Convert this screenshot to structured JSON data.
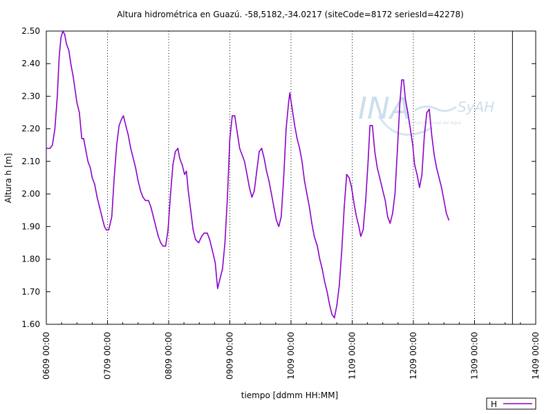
{
  "chart_data": {
    "type": "line",
    "title": "Altura hidrométrica en Guazú. -58,5182,-34.0217  (siteCode=8172 seriesId=42278)",
    "xlabel": "tiempo [ddmm HH:MM]",
    "ylabel": "Altura h [m]",
    "ylim": [
      1.6,
      2.5
    ],
    "yticks": [
      "1.60",
      "1.70",
      "1.80",
      "1.90",
      "2.00",
      "2.10",
      "2.20",
      "2.30",
      "2.40",
      "2.50"
    ],
    "x_unit": "day",
    "xlim": [
      6,
      14
    ],
    "xticks": [
      {
        "x": 6,
        "label": "0609 00:00"
      },
      {
        "x": 7,
        "label": "0709 00:00"
      },
      {
        "x": 8,
        "label": "0809 00:00"
      },
      {
        "x": 9,
        "label": "0909 00:00"
      },
      {
        "x": 10,
        "label": "1009 00:00"
      },
      {
        "x": 11,
        "label": "1109 00:00"
      },
      {
        "x": 12,
        "label": "1209 00:00"
      },
      {
        "x": 13,
        "label": "1309 00:00"
      },
      {
        "x": 14,
        "label": "1409 00:00"
      }
    ],
    "vertical_marker_x": 13.62,
    "legend_position": "bottom-right",
    "series": [
      {
        "name": "H",
        "color": "#8b00c8",
        "points": [
          [
            6.0,
            2.14
          ],
          [
            6.06,
            2.14
          ],
          [
            6.1,
            2.15
          ],
          [
            6.14,
            2.2
          ],
          [
            6.18,
            2.3
          ],
          [
            6.21,
            2.42
          ],
          [
            6.24,
            2.48
          ],
          [
            6.27,
            2.5
          ],
          [
            6.3,
            2.49
          ],
          [
            6.33,
            2.46
          ],
          [
            6.37,
            2.44
          ],
          [
            6.4,
            2.4
          ],
          [
            6.44,
            2.36
          ],
          [
            6.47,
            2.32
          ],
          [
            6.5,
            2.28
          ],
          [
            6.54,
            2.25
          ],
          [
            6.58,
            2.17
          ],
          [
            6.61,
            2.17
          ],
          [
            6.65,
            2.13
          ],
          [
            6.68,
            2.1
          ],
          [
            6.72,
            2.08
          ],
          [
            6.75,
            2.05
          ],
          [
            6.79,
            2.03
          ],
          [
            6.83,
            1.99
          ],
          [
            6.87,
            1.96
          ],
          [
            6.91,
            1.93
          ],
          [
            6.95,
            1.9
          ],
          [
            6.98,
            1.89
          ],
          [
            7.02,
            1.89
          ],
          [
            7.07,
            1.93
          ],
          [
            7.11,
            2.05
          ],
          [
            7.15,
            2.15
          ],
          [
            7.19,
            2.21
          ],
          [
            7.23,
            2.23
          ],
          [
            7.26,
            2.24
          ],
          [
            7.3,
            2.21
          ],
          [
            7.34,
            2.18
          ],
          [
            7.38,
            2.14
          ],
          [
            7.42,
            2.11
          ],
          [
            7.46,
            2.08
          ],
          [
            7.5,
            2.04
          ],
          [
            7.54,
            2.01
          ],
          [
            7.58,
            1.99
          ],
          [
            7.62,
            1.98
          ],
          [
            7.67,
            1.98
          ],
          [
            7.71,
            1.96
          ],
          [
            7.75,
            1.93
          ],
          [
            7.79,
            1.9
          ],
          [
            7.83,
            1.87
          ],
          [
            7.87,
            1.85
          ],
          [
            7.91,
            1.84
          ],
          [
            7.95,
            1.84
          ],
          [
            7.99,
            1.89
          ],
          [
            8.03,
            2.0
          ],
          [
            8.07,
            2.09
          ],
          [
            8.11,
            2.13
          ],
          [
            8.15,
            2.14
          ],
          [
            8.18,
            2.11
          ],
          [
            8.22,
            2.09
          ],
          [
            8.26,
            2.06
          ],
          [
            8.29,
            2.07
          ],
          [
            8.32,
            2.01
          ],
          [
            8.36,
            1.95
          ],
          [
            8.4,
            1.89
          ],
          [
            8.44,
            1.86
          ],
          [
            8.49,
            1.85
          ],
          [
            8.54,
            1.87
          ],
          [
            8.58,
            1.88
          ],
          [
            8.63,
            1.88
          ],
          [
            8.67,
            1.86
          ],
          [
            8.71,
            1.83
          ],
          [
            8.76,
            1.79
          ],
          [
            8.8,
            1.71
          ],
          [
            8.84,
            1.74
          ],
          [
            8.88,
            1.77
          ],
          [
            8.92,
            1.85
          ],
          [
            8.96,
            1.99
          ],
          [
            9.0,
            2.17
          ],
          [
            9.04,
            2.24
          ],
          [
            9.08,
            2.24
          ],
          [
            9.12,
            2.19
          ],
          [
            9.16,
            2.14
          ],
          [
            9.2,
            2.12
          ],
          [
            9.24,
            2.1
          ],
          [
            9.28,
            2.06
          ],
          [
            9.32,
            2.02
          ],
          [
            9.36,
            1.99
          ],
          [
            9.4,
            2.01
          ],
          [
            9.44,
            2.07
          ],
          [
            9.48,
            2.13
          ],
          [
            9.52,
            2.14
          ],
          [
            9.56,
            2.11
          ],
          [
            9.6,
            2.07
          ],
          [
            9.64,
            2.04
          ],
          [
            9.68,
            2.0
          ],
          [
            9.72,
            1.96
          ],
          [
            9.76,
            1.92
          ],
          [
            9.8,
            1.9
          ],
          [
            9.84,
            1.93
          ],
          [
            9.88,
            2.05
          ],
          [
            9.92,
            2.2
          ],
          [
            9.96,
            2.28
          ],
          [
            9.98,
            2.31
          ],
          [
            10.02,
            2.26
          ],
          [
            10.06,
            2.21
          ],
          [
            10.1,
            2.17
          ],
          [
            10.14,
            2.14
          ],
          [
            10.18,
            2.1
          ],
          [
            10.22,
            2.04
          ],
          [
            10.26,
            2.0
          ],
          [
            10.3,
            1.96
          ],
          [
            10.34,
            1.91
          ],
          [
            10.38,
            1.87
          ],
          [
            10.43,
            1.84
          ],
          [
            10.47,
            1.8
          ],
          [
            10.51,
            1.77
          ],
          [
            10.55,
            1.73
          ],
          [
            10.59,
            1.7
          ],
          [
            10.63,
            1.66
          ],
          [
            10.67,
            1.63
          ],
          [
            10.71,
            1.62
          ],
          [
            10.75,
            1.66
          ],
          [
            10.79,
            1.72
          ],
          [
            10.83,
            1.83
          ],
          [
            10.87,
            1.96
          ],
          [
            10.91,
            2.06
          ],
          [
            10.95,
            2.05
          ],
          [
            10.99,
            2.02
          ],
          [
            11.03,
            1.97
          ],
          [
            11.07,
            1.93
          ],
          [
            11.11,
            1.9
          ],
          [
            11.14,
            1.87
          ],
          [
            11.18,
            1.89
          ],
          [
            11.22,
            1.98
          ],
          [
            11.26,
            2.1
          ],
          [
            11.29,
            2.21
          ],
          [
            11.33,
            2.21
          ],
          [
            11.37,
            2.13
          ],
          [
            11.41,
            2.08
          ],
          [
            11.45,
            2.05
          ],
          [
            11.5,
            2.01
          ],
          [
            11.54,
            1.98
          ],
          [
            11.58,
            1.93
          ],
          [
            11.62,
            1.91
          ],
          [
            11.66,
            1.94
          ],
          [
            11.7,
            2.0
          ],
          [
            11.74,
            2.14
          ],
          [
            11.78,
            2.28
          ],
          [
            11.81,
            2.35
          ],
          [
            11.84,
            2.35
          ],
          [
            11.87,
            2.29
          ],
          [
            11.91,
            2.25
          ],
          [
            11.95,
            2.2
          ],
          [
            11.99,
            2.15
          ],
          [
            12.02,
            2.09
          ],
          [
            12.06,
            2.06
          ],
          [
            12.1,
            2.02
          ],
          [
            12.14,
            2.06
          ],
          [
            12.18,
            2.18
          ],
          [
            12.22,
            2.25
          ],
          [
            12.26,
            2.26
          ],
          [
            12.3,
            2.18
          ],
          [
            12.34,
            2.12
          ],
          [
            12.38,
            2.08
          ],
          [
            12.42,
            2.05
          ],
          [
            12.46,
            2.02
          ],
          [
            12.5,
            1.98
          ],
          [
            12.54,
            1.94
          ],
          [
            12.58,
            1.92
          ]
        ]
      }
    ]
  },
  "legend": {
    "label": "H"
  },
  "watermark": {
    "logo_text": "INA",
    "sub_text": "SyAH",
    "caption": "Instituto Nacional del Agua"
  }
}
